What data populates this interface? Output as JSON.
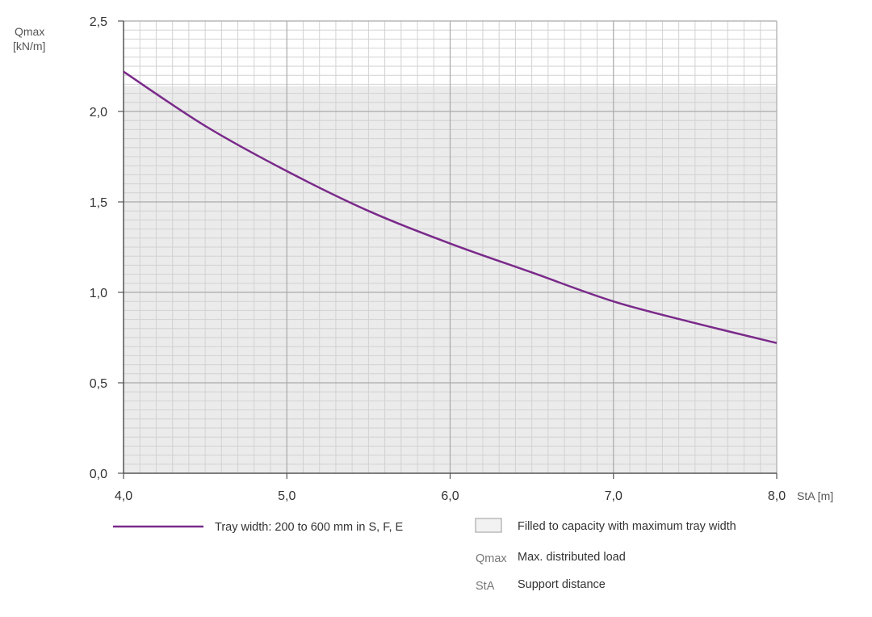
{
  "chart_data": {
    "type": "line",
    "x_axis": {
      "label": "StA [m]",
      "range": [
        4.0,
        8.0
      ],
      "tick_labels": [
        "4,0",
        "5,0",
        "6,0",
        "7,0",
        "8,0"
      ]
    },
    "y_axis": {
      "label_line1": "Qmax",
      "label_line2": "[kN/m]",
      "range": [
        0.0,
        2.5
      ],
      "tick_labels": [
        "0,0",
        "0,5",
        "1,0",
        "1,5",
        "2,0",
        "2,5"
      ]
    },
    "grid": true,
    "capacity_fill_level": 2.14,
    "series": [
      {
        "name": "Tray width: 200 to 600 mm in S, F, E",
        "color": "#7a2a8a",
        "x": [
          4.0,
          4.5,
          5.0,
          5.5,
          6.0,
          6.5,
          7.0,
          7.5,
          8.0
        ],
        "y": [
          2.22,
          1.92,
          1.67,
          1.45,
          1.27,
          1.11,
          0.95,
          0.83,
          0.72
        ]
      }
    ]
  },
  "legend": {
    "line_label": "Tray width: 200 to 600 mm in S, F, E",
    "fill_label": "Filled to capacity with maximum tray width",
    "qmax_abbr": "Qmax",
    "qmax_desc": "Max. distributed load",
    "sta_abbr": "StA",
    "sta_desc": "Support distance"
  },
  "colors": {
    "curve": "#7a2a8a",
    "capacity_fill": "#ebebeb",
    "minor_grid": "#d2d2d2",
    "major_grid": "#aaaaaa",
    "axis": "#555555"
  }
}
